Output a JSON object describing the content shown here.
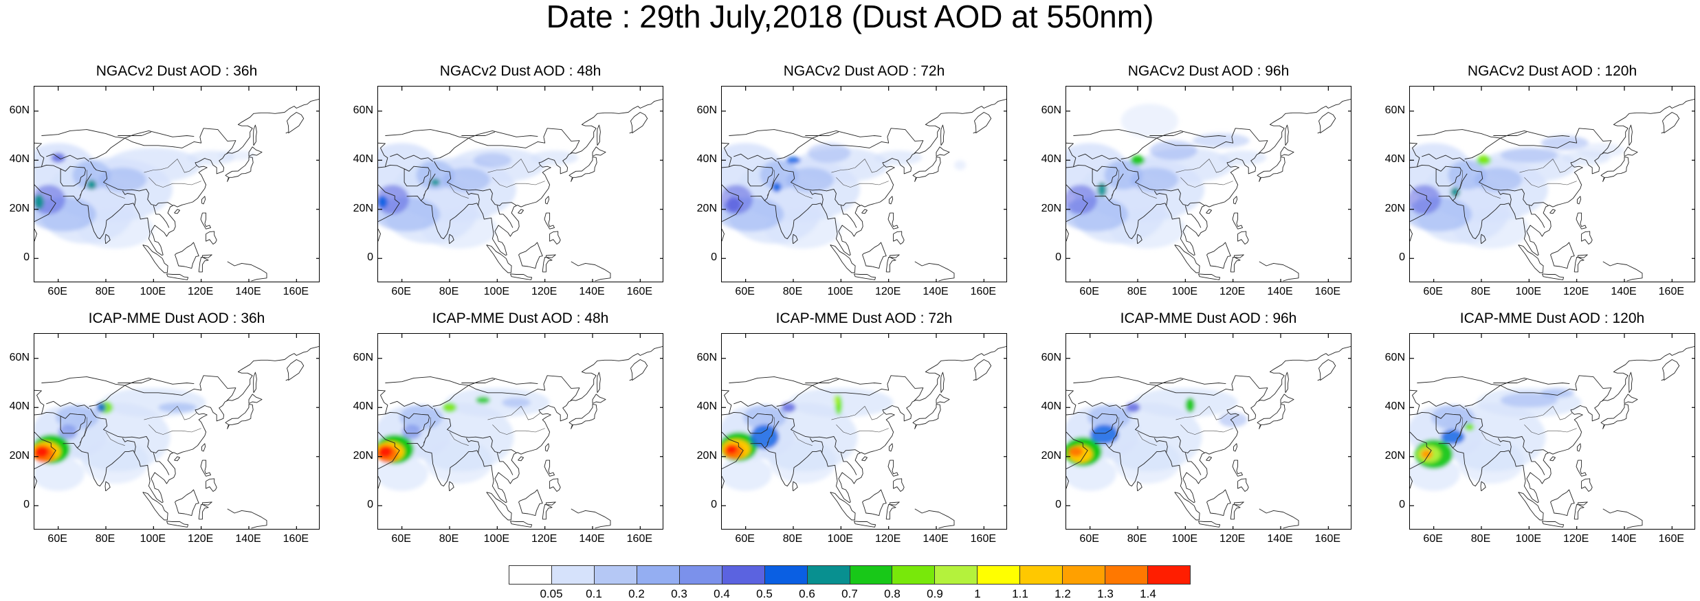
{
  "main_title": "Date : 29th July,2018 (Dust AOD at 550nm)",
  "panels": [
    {
      "id": "ngac-36",
      "title": "NGACv2 Dust AOD : 36h"
    },
    {
      "id": "ngac-48",
      "title": "NGACv2 Dust AOD : 48h"
    },
    {
      "id": "ngac-72",
      "title": "NGACv2 Dust AOD : 72h"
    },
    {
      "id": "ngac-96",
      "title": "NGACv2 Dust AOD : 96h"
    },
    {
      "id": "ngac-120",
      "title": "NGACv2 Dust AOD : 120h"
    },
    {
      "id": "icap-36",
      "title": "ICAP-MME Dust AOD : 36h"
    },
    {
      "id": "icap-48",
      "title": "ICAP-MME Dust AOD : 48h"
    },
    {
      "id": "icap-72",
      "title": "ICAP-MME Dust AOD : 72h"
    },
    {
      "id": "icap-96",
      "title": "ICAP-MME Dust AOD : 96h"
    },
    {
      "id": "icap-120",
      "title": "ICAP-MME Dust AOD : 120h"
    }
  ],
  "map_extent": {
    "lon_min": 50,
    "lon_max": 170,
    "lat_min": -10,
    "lat_max": 70
  },
  "lat_ticks": [
    {
      "v": 60,
      "label": "60N"
    },
    {
      "v": 40,
      "label": "40N"
    },
    {
      "v": 20,
      "label": "20N"
    },
    {
      "v": 0,
      "label": "0"
    }
  ],
  "lon_ticks": [
    {
      "v": 60,
      "label": "60E"
    },
    {
      "v": 80,
      "label": "80E"
    },
    {
      "v": 100,
      "label": "100E"
    },
    {
      "v": 120,
      "label": "120E"
    },
    {
      "v": 140,
      "label": "140E"
    },
    {
      "v": 160,
      "label": "160E"
    }
  ],
  "colorbar": {
    "labels": [
      "0.05",
      "0.1",
      "0.2",
      "0.3",
      "0.4",
      "0.5",
      "0.6",
      "0.7",
      "0.8",
      "0.9",
      "1",
      "1.1",
      "1.2",
      "1.3",
      "1.4"
    ],
    "colors": [
      "#ffffff",
      "#d6e2fb",
      "#b5c8f5",
      "#94aef2",
      "#7b91eb",
      "#5b63e0",
      "#0a5fe3",
      "#089090",
      "#18c818",
      "#78e80a",
      "#b4f23c",
      "#ffff00",
      "#ffc800",
      "#ffa000",
      "#ff7800",
      "#ff1e00"
    ]
  }
}
